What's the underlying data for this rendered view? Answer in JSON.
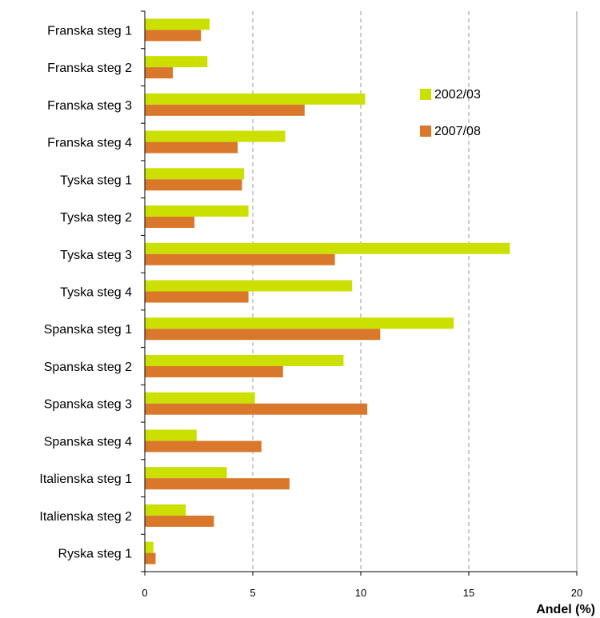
{
  "chart_data": {
    "type": "bar",
    "orientation": "horizontal",
    "categories": [
      "Franska steg 1",
      "Franska steg 2",
      "Franska steg 3",
      "Franska steg 4",
      "Tyska steg 1",
      "Tyska steg 2",
      "Tyska steg 3",
      "Tyska steg 4",
      "Spanska steg 1",
      "Spanska steg 2",
      "Spanska steg 3",
      "Spanska steg 4",
      "Italienska steg 1",
      "Italienska steg 2",
      "Ryska steg 1"
    ],
    "series": [
      {
        "name": "2002/03",
        "color": "#cce000",
        "values": [
          3.0,
          2.9,
          10.2,
          6.5,
          4.6,
          4.8,
          16.9,
          9.6,
          14.3,
          9.2,
          5.1,
          2.4,
          3.8,
          1.9,
          0.4
        ]
      },
      {
        "name": "2007/08",
        "color": "#d9782b",
        "values": [
          2.6,
          1.3,
          7.4,
          4.3,
          4.5,
          2.3,
          8.8,
          4.8,
          10.9,
          6.4,
          10.3,
          5.4,
          6.7,
          3.2,
          0.5
        ]
      }
    ],
    "xlabel": "Andel (%)",
    "xlim": [
      0,
      20
    ],
    "xticks": [
      "0",
      "5",
      "10",
      "15",
      "20"
    ],
    "xtick_values": [
      0,
      5,
      10,
      15,
      20
    ],
    "grid": "vertical dashed",
    "legend_position": "right"
  }
}
